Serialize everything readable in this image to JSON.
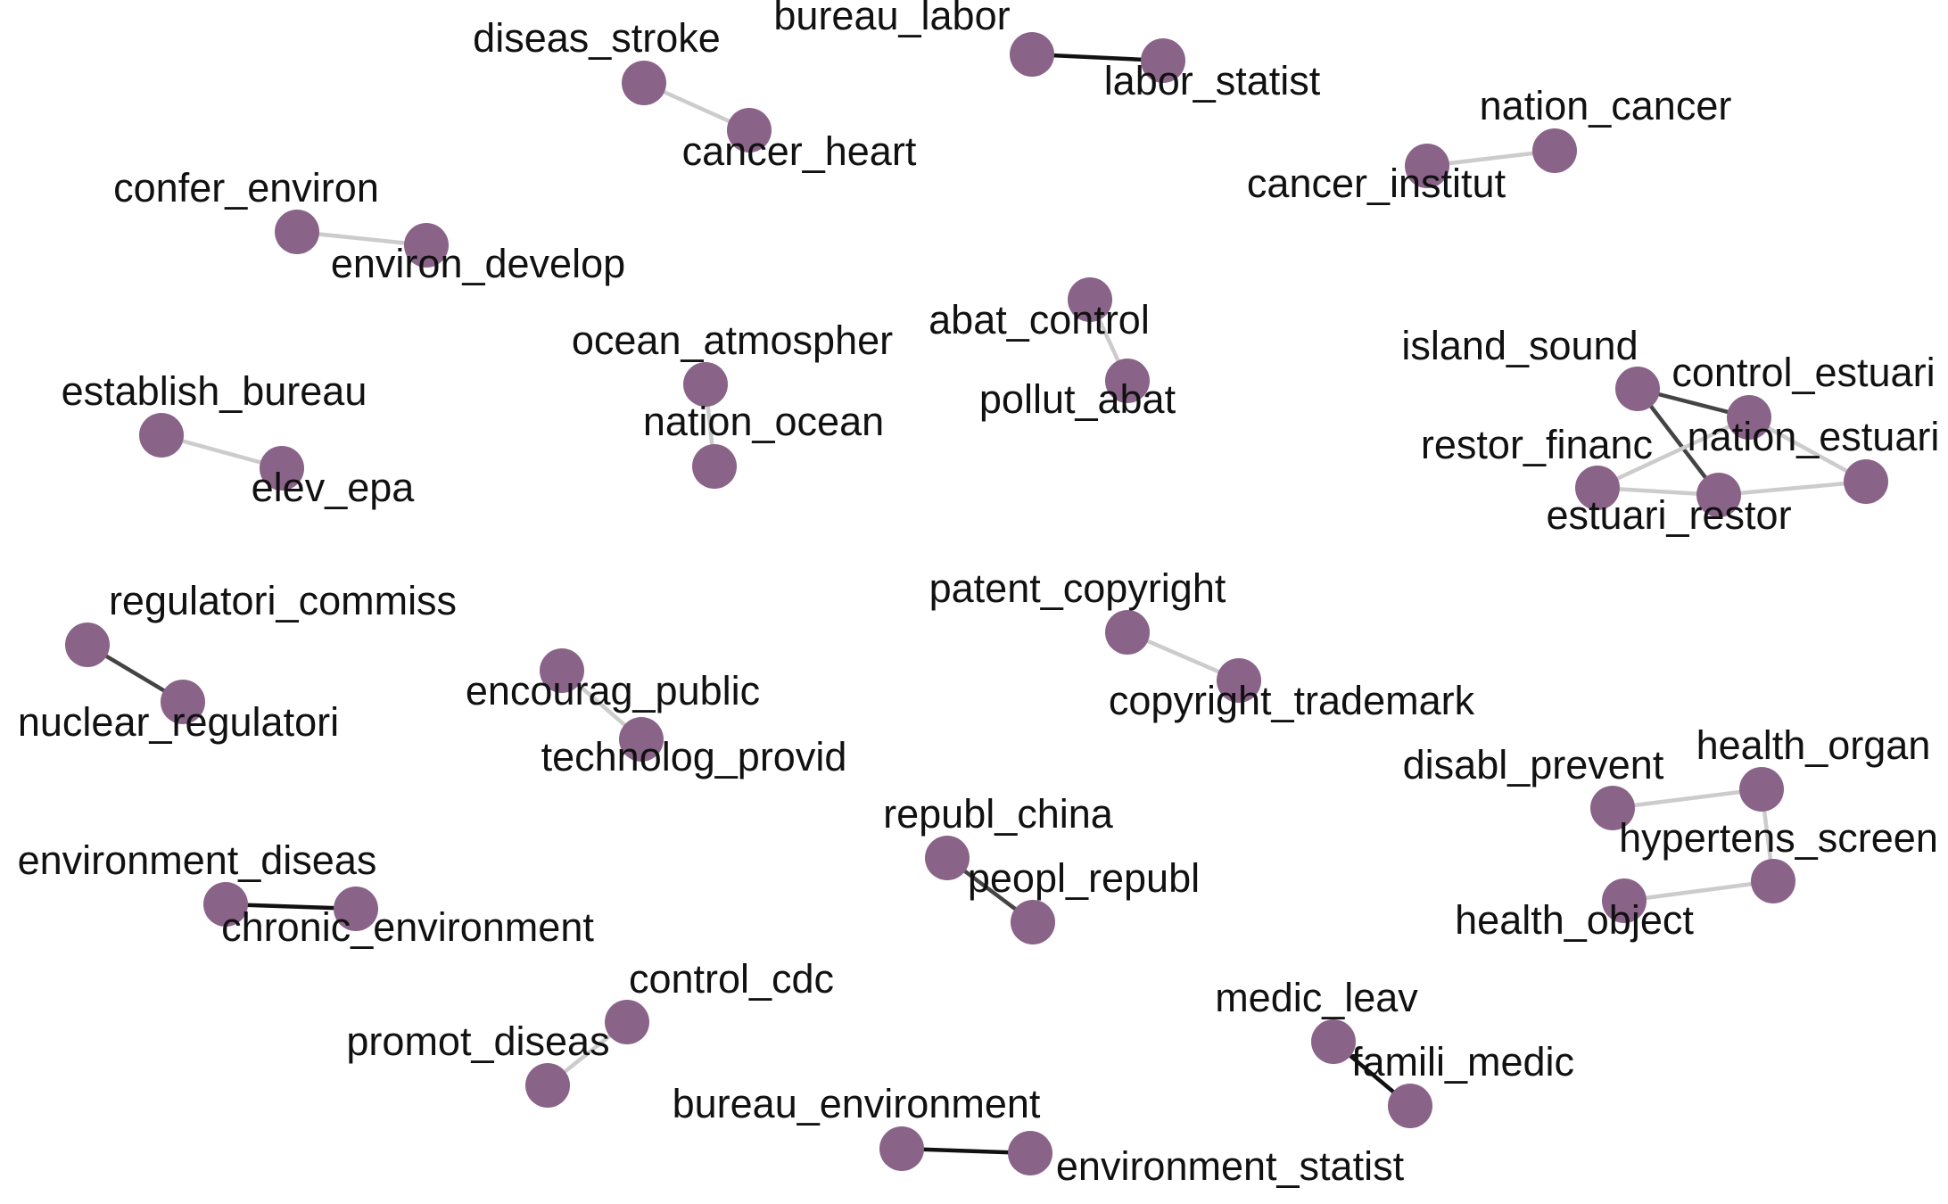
{
  "node_color": "#8a6389",
  "edge_colors": {
    "strong": "#111111",
    "medium": "#444444",
    "weak": "#cccccc"
  },
  "nodes": [
    {
      "id": "diseas_stroke",
      "label": "diseas_stroke"
    },
    {
      "id": "cancer_heart",
      "label": "cancer_heart"
    },
    {
      "id": "bureau_labor",
      "label": "bureau_labor"
    },
    {
      "id": "labor_statist",
      "label": "labor_statist"
    },
    {
      "id": "nation_cancer",
      "label": "nation_cancer"
    },
    {
      "id": "cancer_institut",
      "label": "cancer_institut"
    },
    {
      "id": "confer_environ",
      "label": "confer_environ"
    },
    {
      "id": "environ_develop",
      "label": "environ_develop"
    },
    {
      "id": "abat_control",
      "label": "abat_control"
    },
    {
      "id": "pollut_abat",
      "label": "pollut_abat"
    },
    {
      "id": "ocean_atmospher",
      "label": "ocean_atmospher"
    },
    {
      "id": "nation_ocean",
      "label": "nation_ocean"
    },
    {
      "id": "establish_bureau",
      "label": "establish_bureau"
    },
    {
      "id": "elev_epa",
      "label": "elev_epa"
    },
    {
      "id": "island_sound",
      "label": "island_sound"
    },
    {
      "id": "control_estuari",
      "label": "control_estuari"
    },
    {
      "id": "restor_financ",
      "label": "restor_financ"
    },
    {
      "id": "nation_estuari",
      "label": "nation_estuari"
    },
    {
      "id": "estuari_restor",
      "label": "estuari_restor"
    },
    {
      "id": "regulatori_commiss",
      "label": "regulatori_commiss"
    },
    {
      "id": "nuclear_regulatori",
      "label": "nuclear_regulatori"
    },
    {
      "id": "encourag_public",
      "label": "encourag_public"
    },
    {
      "id": "technolog_provid",
      "label": "technolog_provid"
    },
    {
      "id": "patent_copyright",
      "label": "patent_copyright"
    },
    {
      "id": "copyright_trademark",
      "label": "copyright_trademark"
    },
    {
      "id": "disabl_prevent",
      "label": "disabl_prevent"
    },
    {
      "id": "health_organ",
      "label": "health_organ"
    },
    {
      "id": "hypertens_screen",
      "label": "hypertens_screen"
    },
    {
      "id": "health_object",
      "label": "health_object"
    },
    {
      "id": "republ_china",
      "label": "republ_china"
    },
    {
      "id": "peopl_republ",
      "label": "peopl_republ"
    },
    {
      "id": "environment_diseas",
      "label": "environment_diseas"
    },
    {
      "id": "chronic_environment",
      "label": "chronic_environment"
    },
    {
      "id": "control_cdc",
      "label": "control_cdc"
    },
    {
      "id": "promot_diseas",
      "label": "promot_diseas"
    },
    {
      "id": "medic_leav",
      "label": "medic_leav"
    },
    {
      "id": "famili_medic",
      "label": "famili_medic"
    },
    {
      "id": "bureau_environment",
      "label": "bureau_environment"
    },
    {
      "id": "environment_statist",
      "label": "environment_statist"
    }
  ],
  "edges": [
    {
      "source": "diseas_stroke",
      "target": "cancer_heart",
      "strength": "weak"
    },
    {
      "source": "bureau_labor",
      "target": "labor_statist",
      "strength": "strong"
    },
    {
      "source": "cancer_institut",
      "target": "nation_cancer",
      "strength": "weak"
    },
    {
      "source": "confer_environ",
      "target": "environ_develop",
      "strength": "weak"
    },
    {
      "source": "abat_control",
      "target": "pollut_abat",
      "strength": "weak"
    },
    {
      "source": "ocean_atmospher",
      "target": "nation_ocean",
      "strength": "weak"
    },
    {
      "source": "establish_bureau",
      "target": "elev_epa",
      "strength": "weak"
    },
    {
      "source": "island_sound",
      "target": "control_estuari",
      "strength": "medium"
    },
    {
      "source": "island_sound",
      "target": "estuari_restor",
      "strength": "medium"
    },
    {
      "source": "control_estuari",
      "target": "restor_financ",
      "strength": "weak"
    },
    {
      "source": "control_estuari",
      "target": "nation_estuari",
      "strength": "weak"
    },
    {
      "source": "restor_financ",
      "target": "estuari_restor",
      "strength": "weak"
    },
    {
      "source": "estuari_restor",
      "target": "nation_estuari",
      "strength": "weak"
    },
    {
      "source": "regulatori_commiss",
      "target": "nuclear_regulatori",
      "strength": "medium"
    },
    {
      "source": "encourag_public",
      "target": "technolog_provid",
      "strength": "weak"
    },
    {
      "source": "patent_copyright",
      "target": "copyright_trademark",
      "strength": "weak"
    },
    {
      "source": "disabl_prevent",
      "target": "health_organ",
      "strength": "weak"
    },
    {
      "source": "health_organ",
      "target": "hypertens_screen",
      "strength": "weak"
    },
    {
      "source": "hypertens_screen",
      "target": "health_object",
      "strength": "weak"
    },
    {
      "source": "republ_china",
      "target": "peopl_republ",
      "strength": "medium"
    },
    {
      "source": "environment_diseas",
      "target": "chronic_environment",
      "strength": "strong"
    },
    {
      "source": "control_cdc",
      "target": "promot_diseas",
      "strength": "weak"
    },
    {
      "source": "medic_leav",
      "target": "famili_medic",
      "strength": "strong"
    },
    {
      "source": "bureau_environment",
      "target": "environment_statist",
      "strength": "strong"
    }
  ]
}
